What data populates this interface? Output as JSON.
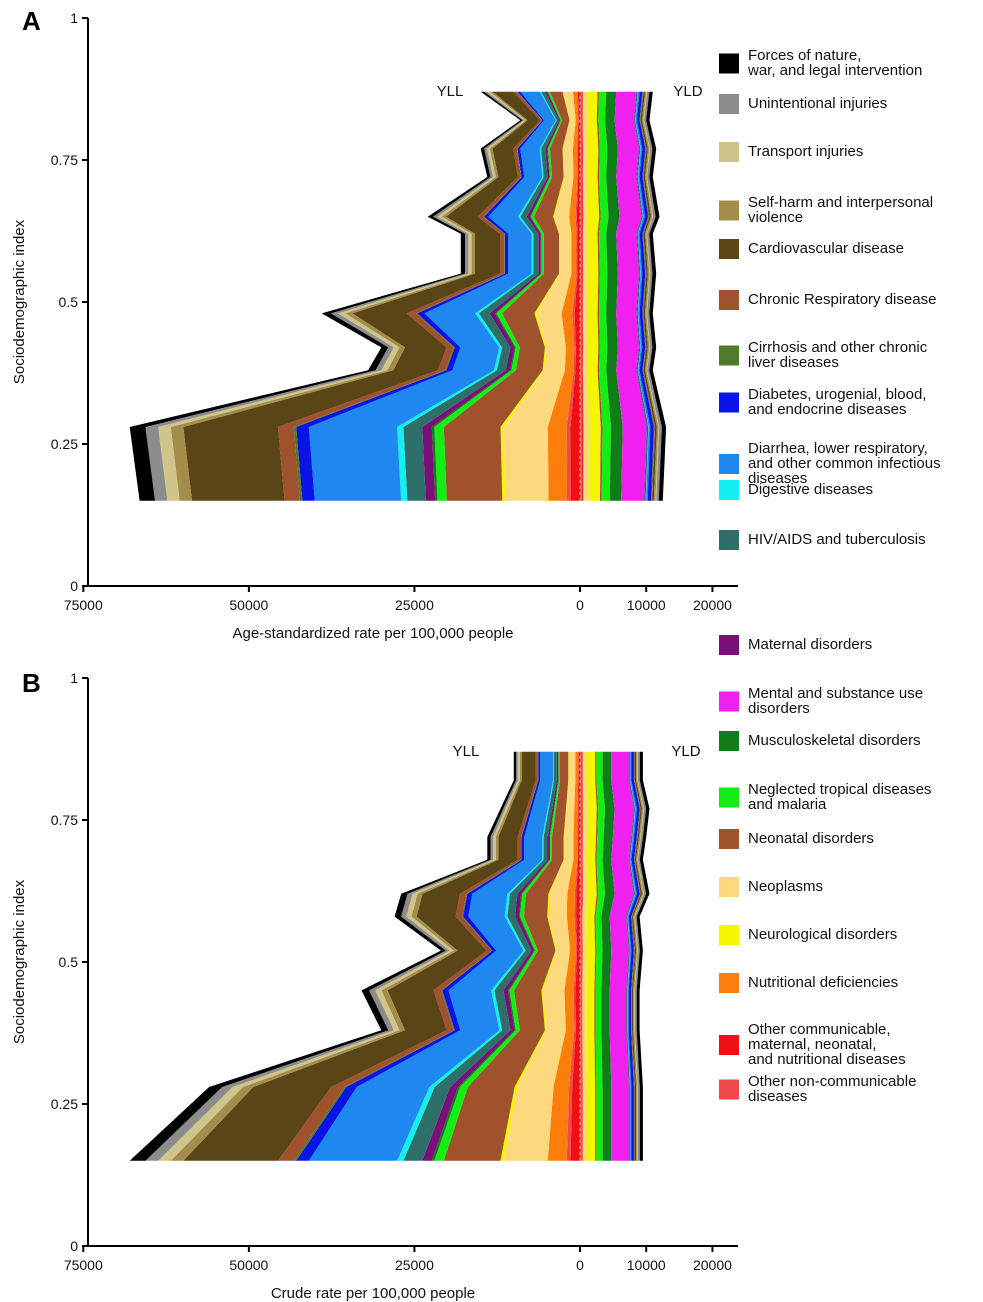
{
  "legend": [
    {
      "label": [
        "Forces of nature,",
        "war, and legal intervention"
      ],
      "color": "#000000"
    },
    {
      "label": [
        "Unintentional injuries"
      ],
      "color": "#8c8c8c"
    },
    {
      "label": [
        "Transport injuries"
      ],
      "color": "#cfc58a"
    },
    {
      "label": [
        "Self-harm and interpersonal",
        "violence"
      ],
      "color": "#a48c4a"
    },
    {
      "label": [
        "Cardiovascular disease"
      ],
      "color": "#5a4516"
    },
    {
      "label": [
        "Chronic Respiratory disease"
      ],
      "color": "#a0522d"
    },
    {
      "label": [
        "Cirrhosis and other chronic",
        "liver diseases"
      ],
      "color": "#4e7a2a"
    },
    {
      "label": [
        "Diabetes, urogenial, blood,",
        "and endocrine diseases"
      ],
      "color": "#0a14e6"
    },
    {
      "label": [
        "Diarrhea, lower respiratory,",
        "and other common infectious",
        "diseases"
      ],
      "color": "#1e88f0"
    },
    {
      "label": [
        "Digestive diseases"
      ],
      "color": "#12f0f0"
    },
    {
      "label": [
        "HIV/AIDS and tuberculosis"
      ],
      "color": "#2e6f6a"
    },
    {
      "label": [
        "Maternal disorders"
      ],
      "color": "#7a0f7a"
    },
    {
      "label": [
        "Mental and substance use",
        "disorders"
      ],
      "color": "#f020f0"
    },
    {
      "label": [
        "Musculoskeletal disorders"
      ],
      "color": "#0f7d18"
    },
    {
      "label": [
        "Neglected tropical diseases",
        "and malaria"
      ],
      "color": "#14ee14"
    },
    {
      "label": [
        "Neonatal disorders"
      ],
      "color": "#a0522d"
    },
    {
      "label": [
        "Neoplasms"
      ],
      "color": "#fcd97f"
    },
    {
      "label": [
        "Neurological disorders"
      ],
      "color": "#f5f500"
    },
    {
      "label": [
        "Nutritional deficiencies"
      ],
      "color": "#fb7d0b"
    },
    {
      "label": [
        "Other communicable,",
        "maternal, neonatal,",
        "and nutritional diseases"
      ],
      "color": "#ee1111"
    },
    {
      "label": [
        "Other non-communicable",
        "diseases"
      ],
      "color": "#f24a4a"
    }
  ],
  "chart_data": [
    {
      "panel": "A",
      "type": "area",
      "xlabel": "Age-standardized rate per 100,000 people",
      "ylabel": "Sociodemographic index",
      "ylim": [
        0,
        1
      ],
      "ytick_labels": [
        "0",
        "0.25",
        "0.5",
        "0.75",
        "1"
      ],
      "xtick_labels": [
        "75000",
        "50000",
        "25000",
        "0",
        "10000",
        "20000"
      ],
      "left_label": "YLL",
      "right_label": "YLD",
      "sdi": [
        0.15,
        0.28,
        0.38,
        0.42,
        0.48,
        0.55,
        0.62,
        0.65,
        0.72,
        0.77,
        0.82,
        0.87
      ],
      "yll_total": [
        66500,
        68000,
        32000,
        30000,
        39000,
        18000,
        18000,
        23000,
        14000,
        15000,
        9000,
        15000
      ],
      "yld_total": [
        12500,
        13000,
        11000,
        11500,
        11000,
        11500,
        11000,
        12000,
        11000,
        11500,
        10500,
        11000
      ]
    },
    {
      "panel": "B",
      "type": "area",
      "xlabel": "Crude rate per 100,000 people",
      "ylabel": "Sociodemographic index",
      "ylim": [
        0,
        1
      ],
      "ytick_labels": [
        "0",
        "0.25",
        "0.5",
        "0.75",
        "1"
      ],
      "xtick_labels": [
        "75000",
        "50000",
        "25000",
        "0",
        "10000",
        "20000"
      ],
      "left_label": "YLL",
      "right_label": "YLD",
      "sdi": [
        0.15,
        0.28,
        0.38,
        0.45,
        0.52,
        0.58,
        0.62,
        0.68,
        0.72,
        0.77,
        0.82,
        0.87
      ],
      "yll_total": [
        68000,
        56000,
        30000,
        33000,
        21000,
        28000,
        27000,
        14000,
        14000,
        12000,
        10000,
        10000
      ],
      "yld_total": [
        9500,
        9500,
        9000,
        9000,
        9500,
        9000,
        10500,
        9500,
        10000,
        10500,
        9500,
        9500
      ]
    }
  ]
}
